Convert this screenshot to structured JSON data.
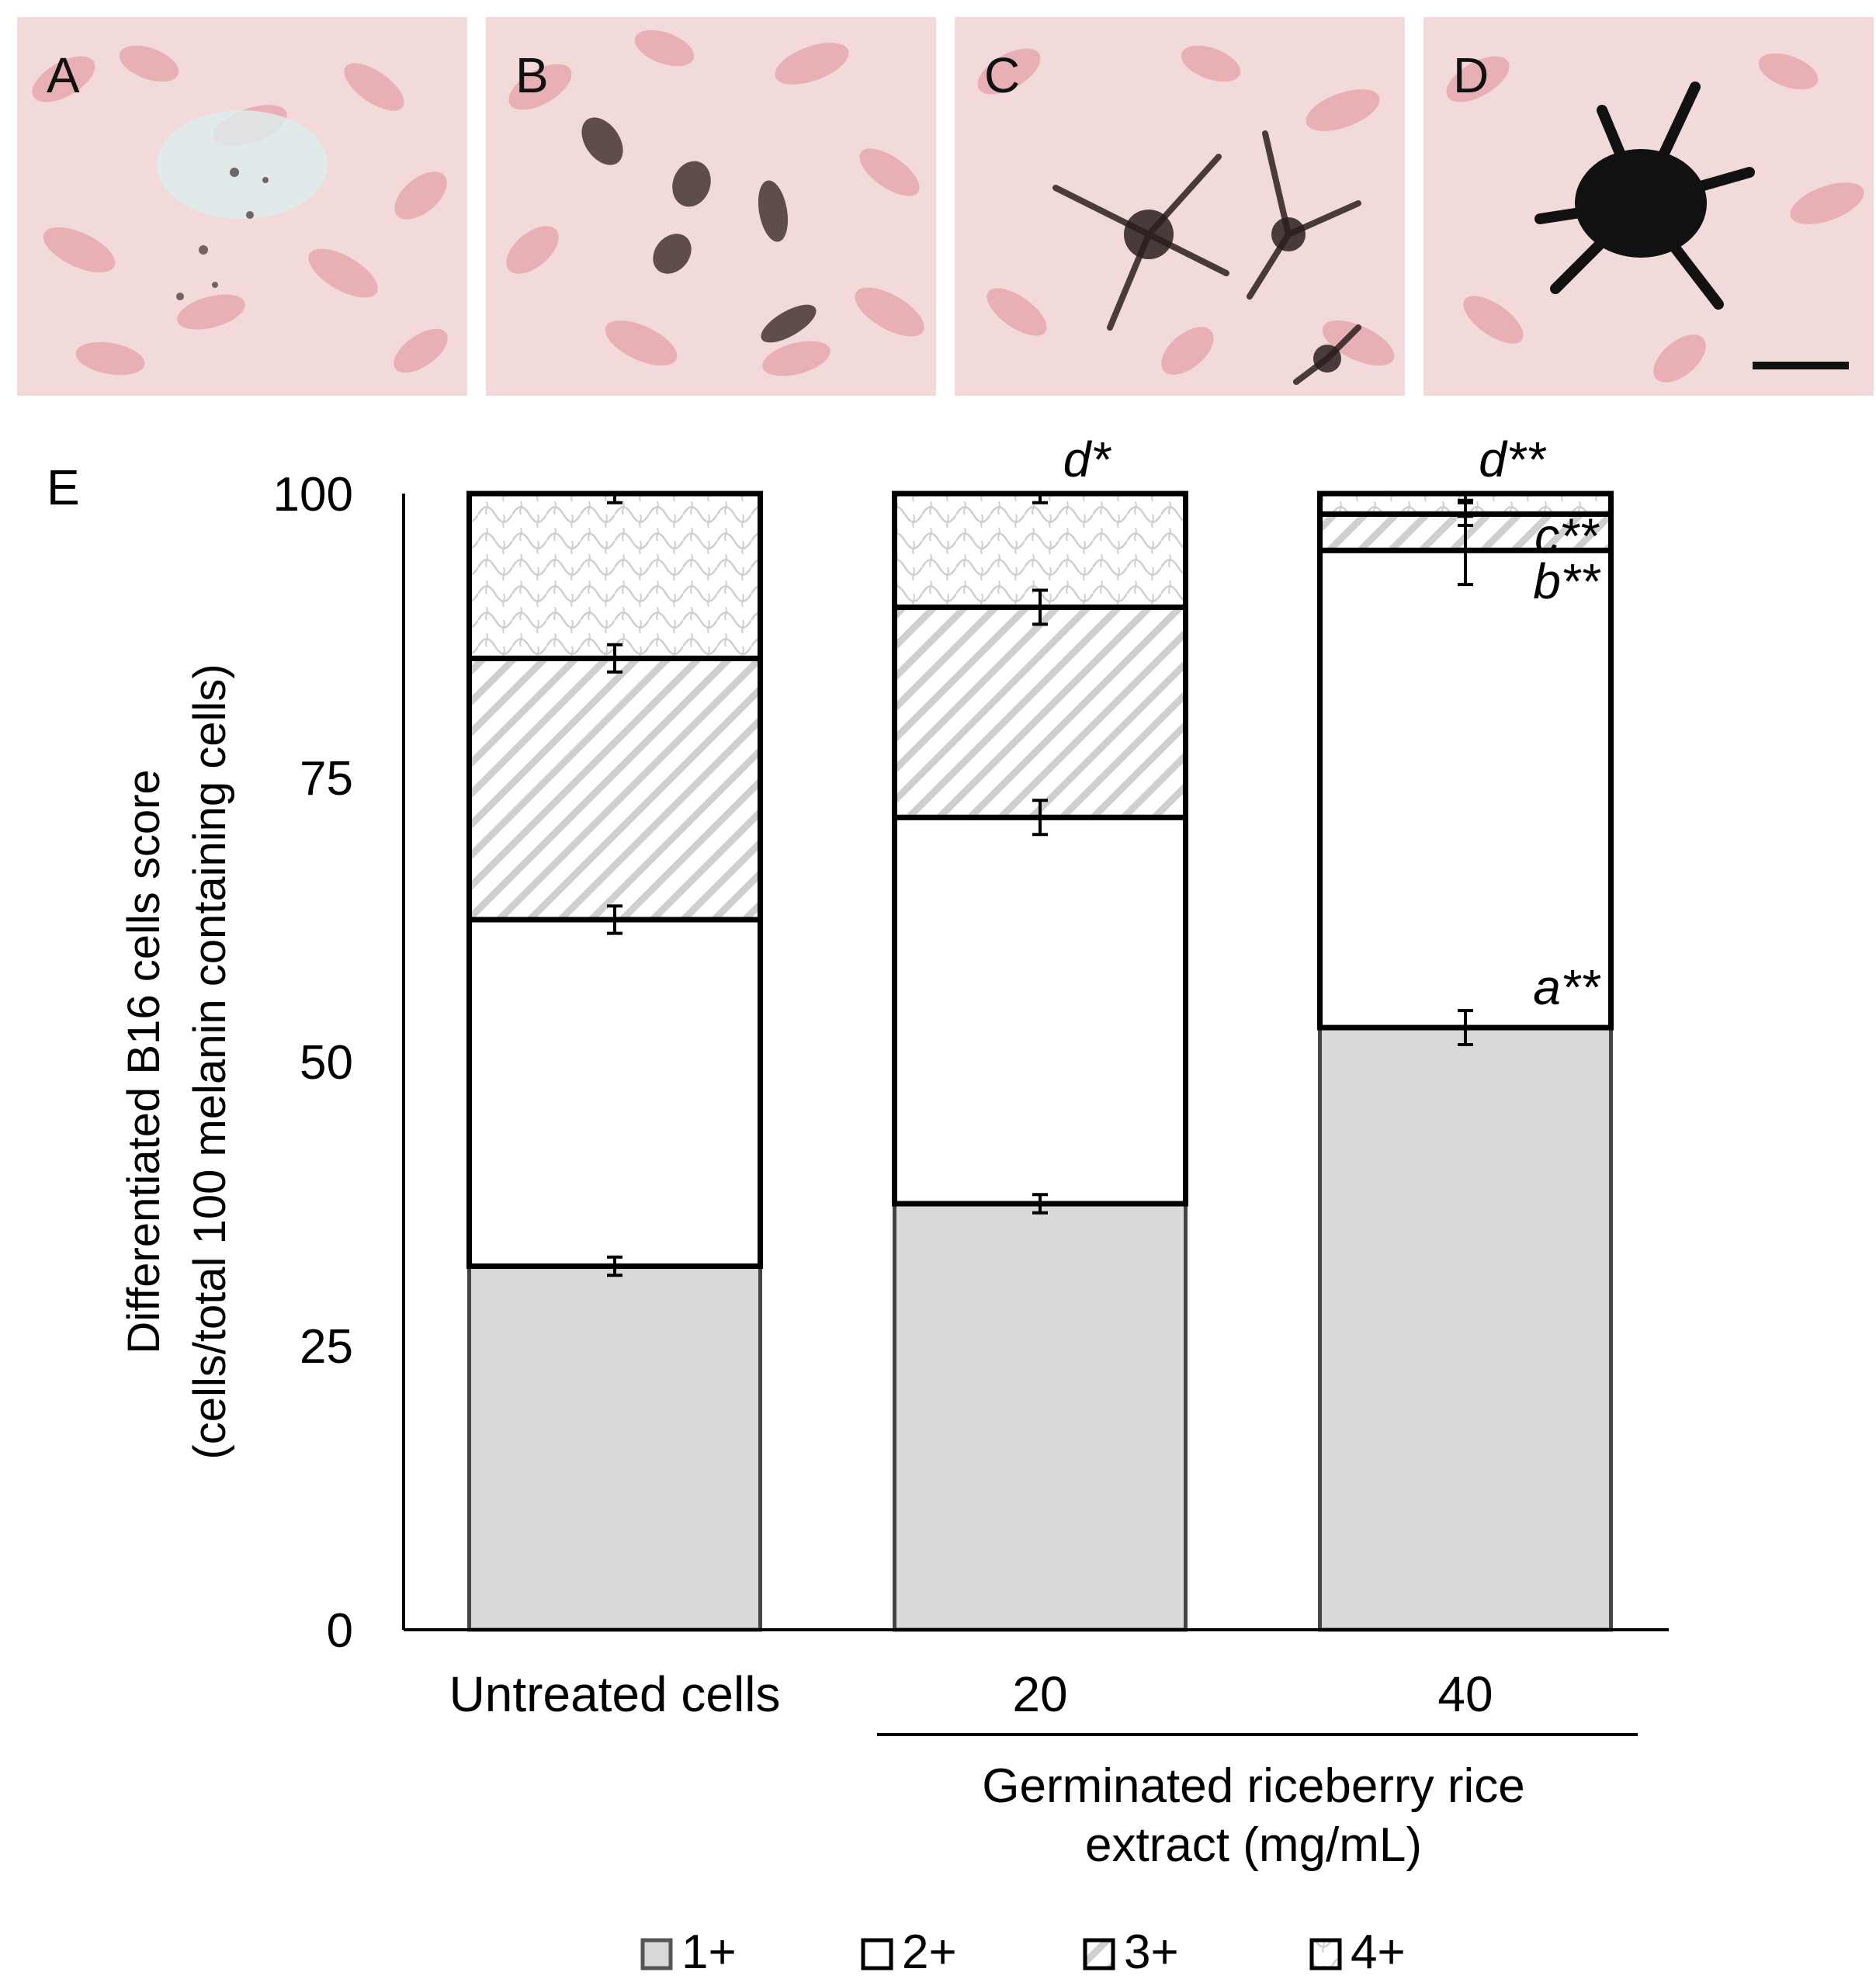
{
  "panels": [
    {
      "label": "A",
      "cells": "few lightly pigmented cells"
    },
    {
      "label": "B",
      "cells": "bipolar pigmented cells"
    },
    {
      "label": "C",
      "cells": "dendritic pigmented cells"
    },
    {
      "label": "D",
      "cells": "heavily pigmented dendritic cell"
    }
  ],
  "chart_label": "E",
  "chart_data": {
    "type": "bar",
    "stacked": true,
    "categories": [
      "Untreated cells",
      "20",
      "40"
    ],
    "group_label": "Germinated riceberry rice extract (mg/mL)",
    "group_label_lines": [
      "Germinated riceberry rice",
      "extract (mg/mL)"
    ],
    "ylabel_lines": [
      "Differentiated B16 cells score",
      "(cells/total 100 melanin containing cells)"
    ],
    "ylim": [
      0,
      100
    ],
    "yticks": [
      0,
      25,
      50,
      75,
      100
    ],
    "series": [
      {
        "name": "1+",
        "values": [
          32,
          37.5,
          53
        ],
        "errors": [
          0.8,
          0.8,
          1.5
        ],
        "color": "#d9d9d9",
        "pattern": "solid"
      },
      {
        "name": "2+",
        "values": [
          30.5,
          34,
          42
        ],
        "errors": [
          1.2,
          1.5,
          3.0
        ],
        "color": "#ffffff",
        "pattern": "none"
      },
      {
        "name": "3+",
        "values": [
          23,
          18.5,
          3.2
        ],
        "errors": [
          1.2,
          1.5,
          1.0
        ],
        "color": "#ffffff",
        "pattern": "diagonal"
      },
      {
        "name": "4+",
        "values": [
          14.5,
          10,
          1.8
        ],
        "errors": [
          0.8,
          0.8,
          0.6
        ],
        "color": "#ffffff",
        "pattern": "wave"
      }
    ],
    "annotations": [
      {
        "text": "d*",
        "category": "20",
        "at": "top"
      },
      {
        "text": "d**",
        "category": "40",
        "at": "top"
      },
      {
        "text": "c**",
        "category": "40",
        "at": "3+"
      },
      {
        "text": "b**",
        "category": "40",
        "at": "2+"
      },
      {
        "text": "a**",
        "category": "40",
        "at": "1+"
      }
    ],
    "legend_position": "bottom",
    "grid": false
  }
}
